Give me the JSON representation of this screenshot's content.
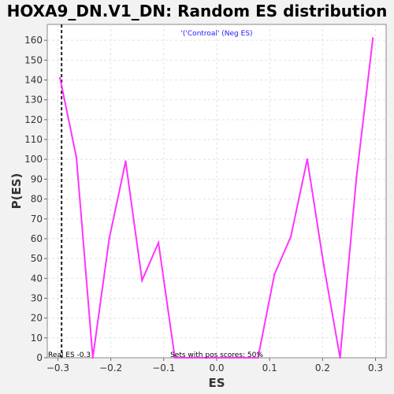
{
  "chart_data": {
    "type": "line",
    "title": "HOXA9_DN.V1_DN: Random ES distribution",
    "xlabel": "ES",
    "ylabel": "P(ES)",
    "xlim": [
      -0.32,
      0.32
    ],
    "ylim": [
      0,
      168
    ],
    "x_ticks": [
      -0.3,
      -0.2,
      -0.1,
      0.0,
      0.1,
      0.2,
      0.3
    ],
    "x_tick_labels": [
      "−0.3",
      "−0.2",
      "−0.1",
      "0.0",
      "0.1",
      "0.2",
      "0.3"
    ],
    "y_ticks": [
      0,
      10,
      20,
      30,
      40,
      50,
      60,
      70,
      80,
      90,
      100,
      110,
      120,
      130,
      140,
      150,
      160
    ],
    "grid": true,
    "legend_text": "'('Controal' (Neg ES)",
    "legend_position": "top-center",
    "series": [
      {
        "name": "'('Controal' (Neg ES)",
        "color": "#ff33ff",
        "x": [
          -0.296,
          -0.265,
          -0.234,
          -0.203,
          -0.172,
          -0.141,
          -0.11,
          -0.079,
          0.078,
          0.109,
          0.14,
          0.171,
          0.202,
          0.233,
          0.264,
          0.295
        ],
        "y": [
          141,
          101,
          0,
          60,
          99,
          39,
          58,
          0,
          0,
          42,
          61,
          100,
          47,
          0,
          91,
          161
        ]
      }
    ],
    "real_es": -0.293,
    "real_es_label": "Real ES -0.3",
    "pos_scores_label": "Sets with pos scores: 50%"
  }
}
